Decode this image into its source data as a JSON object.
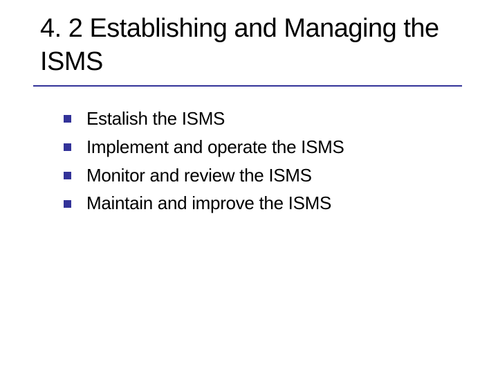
{
  "slide": {
    "title": "4. 2 Establishing and Managing the ISMS",
    "title_fontsize": 38,
    "title_color": "#000000",
    "underline_color": "#333399",
    "underline_width": 620,
    "underline_height": 2,
    "background_color": "#ffffff",
    "bullets": [
      {
        "text": "Estalish the ISMS"
      },
      {
        "text": "Implement and operate the ISMS"
      },
      {
        "text": "Monitor and review the ISMS"
      },
      {
        "text": "Maintain and improve the ISMS"
      }
    ],
    "bullet_marker_color": "#333399",
    "bullet_marker_size": 11,
    "bullet_fontsize": 26,
    "bullet_text_color": "#000000",
    "font_family": "Verdana, Geneva, sans-serif"
  }
}
